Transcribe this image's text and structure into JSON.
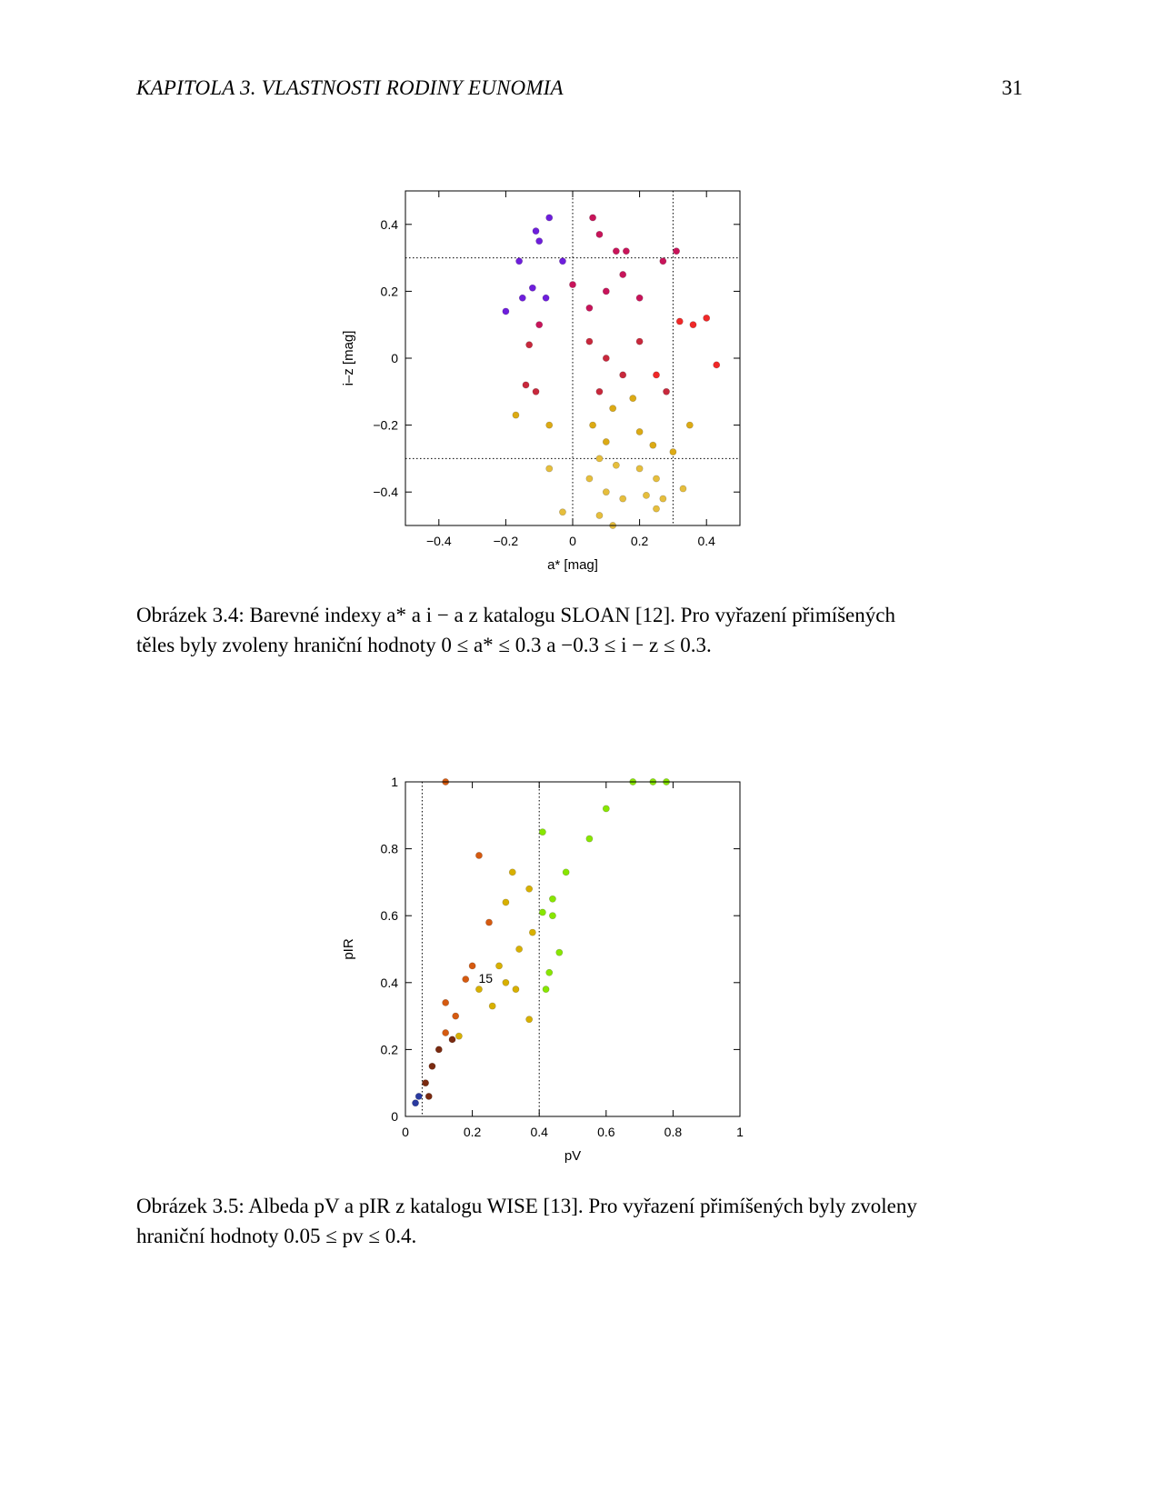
{
  "header": {
    "chapter": "KAPITOLA 3.  VLASTNOSTI RODINY EUNOMIA",
    "page_number": "31"
  },
  "figure1": {
    "caption_label": "Obrázek 3.4:",
    "caption_line1_text": " Barevné indexy a* a i − a z katalogu SLOAN [12]. Pro vyřazení přimíšených",
    "caption_line2_text": "těles byly zvoleny hraniční hodnoty 0 ≤ a* ≤ 0.3 a −0.3 ≤ i − z ≤ 0.3.",
    "chart_data": {
      "type": "scatter",
      "xlabel": "a* [mag]",
      "ylabel": "i–z [mag]",
      "xlim": [
        -0.5,
        0.5
      ],
      "ylim": [
        -0.5,
        0.5
      ],
      "xticks": [
        -0.4,
        -0.2,
        0,
        0.2,
        0.4
      ],
      "xtick_labels": [
        "−0.4",
        "−0.2",
        "0",
        "0.2",
        "0.4"
      ],
      "yticks": [
        -0.4,
        -0.2,
        0,
        0.2,
        0.4
      ],
      "ytick_labels": [
        "−0.4",
        "−0.2",
        "0",
        "0.2",
        "0.4"
      ],
      "cut_lines": {
        "x": [
          0,
          0.3
        ],
        "y": [
          -0.3,
          0.3
        ]
      },
      "grid": false,
      "points": [
        [
          -0.07,
          0.42
        ],
        [
          0.06,
          0.42
        ],
        [
          -0.11,
          0.38
        ],
        [
          -0.1,
          0.35
        ],
        [
          0.08,
          0.37
        ],
        [
          -0.16,
          0.29
        ],
        [
          0.13,
          0.32
        ],
        [
          0.16,
          0.32
        ],
        [
          0.31,
          0.32
        ],
        [
          0.27,
          0.29
        ],
        [
          -0.03,
          0.29
        ],
        [
          -0.12,
          0.21
        ],
        [
          -0.08,
          0.18
        ],
        [
          -0.2,
          0.14
        ],
        [
          -0.15,
          0.18
        ],
        [
          -0.1,
          0.1
        ],
        [
          0.32,
          0.11
        ],
        [
          0.36,
          0.1
        ],
        [
          0.4,
          0.12
        ],
        [
          0.43,
          -0.02
        ],
        [
          -0.13,
          0.04
        ],
        [
          -0.14,
          -0.08
        ],
        [
          -0.11,
          -0.1
        ],
        [
          -0.17,
          -0.17
        ],
        [
          -0.07,
          -0.2
        ],
        [
          0.0,
          0.22
        ],
        [
          0.05,
          0.15
        ],
        [
          0.1,
          0.2
        ],
        [
          0.2,
          0.18
        ],
        [
          0.15,
          0.25
        ],
        [
          0.05,
          0.05
        ],
        [
          0.1,
          0.0
        ],
        [
          0.15,
          -0.05
        ],
        [
          0.2,
          0.05
        ],
        [
          0.08,
          -0.1
        ],
        [
          0.12,
          -0.15
        ],
        [
          0.18,
          -0.12
        ],
        [
          0.25,
          -0.05
        ],
        [
          0.28,
          -0.1
        ],
        [
          0.06,
          -0.2
        ],
        [
          0.1,
          -0.25
        ],
        [
          0.2,
          -0.22
        ],
        [
          0.24,
          -0.26
        ],
        [
          0.3,
          -0.28
        ],
        [
          0.35,
          -0.2
        ],
        [
          0.08,
          -0.3
        ],
        [
          0.13,
          -0.32
        ],
        [
          0.2,
          -0.33
        ],
        [
          0.25,
          -0.36
        ],
        [
          0.33,
          -0.39
        ],
        [
          0.05,
          -0.36
        ],
        [
          0.1,
          -0.4
        ],
        [
          0.15,
          -0.42
        ],
        [
          0.22,
          -0.41
        ],
        [
          0.27,
          -0.42
        ],
        [
          -0.07,
          -0.33
        ],
        [
          -0.03,
          -0.46
        ],
        [
          0.08,
          -0.47
        ],
        [
          0.12,
          -0.5
        ],
        [
          0.25,
          -0.45
        ]
      ]
    }
  },
  "figure2": {
    "caption_label": "Obrázek 3.5:",
    "caption_line1_text": " Albeda pV a pIR z katalogu WISE [13]. Pro vyřazení přimíšených byly zvoleny",
    "caption_line2_text": "hraniční hodnoty 0.05 ≤ pv ≤ 0.4.",
    "chart_data": {
      "type": "scatter",
      "xlabel": "pV",
      "ylabel": "pIR",
      "xlim": [
        0,
        1
      ],
      "ylim": [
        0,
        1
      ],
      "xticks": [
        0,
        0.2,
        0.4,
        0.6,
        0.8,
        1
      ],
      "xtick_labels": [
        "0",
        "0.2",
        "0.4",
        "0.6",
        "0.8",
        "1"
      ],
      "yticks": [
        0,
        0.2,
        0.4,
        0.6,
        0.8,
        1
      ],
      "ytick_labels": [
        "0",
        "0.2",
        "0.4",
        "0.6",
        "0.8",
        "1"
      ],
      "cut_lines": {
        "x": [
          0.05,
          0.4
        ]
      },
      "annotation": "15",
      "annotation_pos": [
        0.24,
        0.4
      ],
      "grid": false,
      "points": [
        [
          0.12,
          1.0
        ],
        [
          0.68,
          1.0
        ],
        [
          0.74,
          1.0
        ],
        [
          0.78,
          1.0
        ],
        [
          0.22,
          0.78
        ],
        [
          0.32,
          0.73
        ],
        [
          0.37,
          0.68
        ],
        [
          0.41,
          0.85
        ],
        [
          0.6,
          0.92
        ],
        [
          0.55,
          0.83
        ],
        [
          0.48,
          0.73
        ],
        [
          0.44,
          0.65
        ],
        [
          0.3,
          0.64
        ],
        [
          0.25,
          0.58
        ],
        [
          0.41,
          0.61
        ],
        [
          0.44,
          0.6
        ],
        [
          0.46,
          0.49
        ],
        [
          0.43,
          0.43
        ],
        [
          0.42,
          0.38
        ],
        [
          0.37,
          0.29
        ],
        [
          0.2,
          0.45
        ],
        [
          0.28,
          0.45
        ],
        [
          0.34,
          0.5
        ],
        [
          0.38,
          0.55
        ],
        [
          0.3,
          0.4
        ],
        [
          0.22,
          0.38
        ],
        [
          0.18,
          0.41
        ],
        [
          0.26,
          0.33
        ],
        [
          0.33,
          0.38
        ],
        [
          0.15,
          0.3
        ],
        [
          0.12,
          0.34
        ],
        [
          0.12,
          0.25
        ],
        [
          0.1,
          0.2
        ],
        [
          0.14,
          0.23
        ],
        [
          0.08,
          0.15
        ],
        [
          0.06,
          0.1
        ],
        [
          0.04,
          0.06
        ],
        [
          0.03,
          0.04
        ],
        [
          0.07,
          0.06
        ],
        [
          0.16,
          0.24
        ]
      ]
    }
  }
}
